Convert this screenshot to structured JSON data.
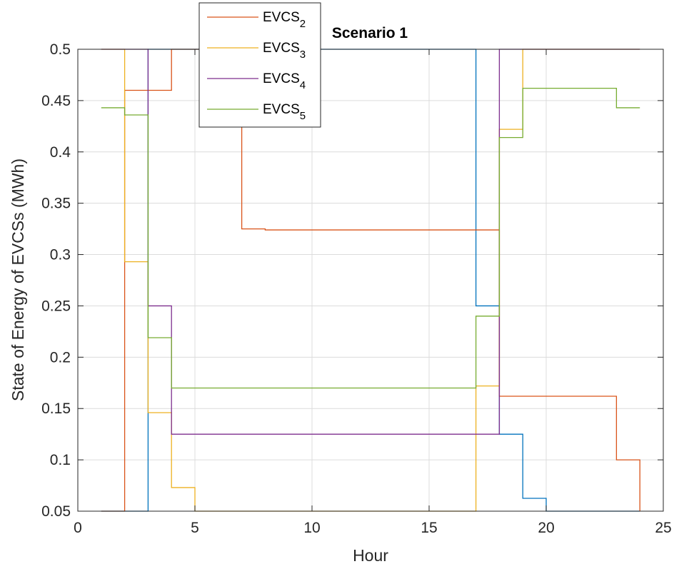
{
  "chart_data": {
    "type": "line",
    "step": true,
    "title": "Scenario 1",
    "xlabel": "Hour",
    "ylabel": "State of Energy of EVCSs (MWh)",
    "xlim": [
      0,
      25
    ],
    "ylim": [
      0.05,
      0.5
    ],
    "xticks": [
      0,
      5,
      10,
      15,
      20,
      25
    ],
    "yticks": [
      0.05,
      0.1,
      0.15,
      0.2,
      0.25,
      0.3,
      0.35,
      0.4,
      0.45,
      0.5
    ],
    "xtick_labels": [
      "0",
      "5",
      "10",
      "15",
      "20",
      "25"
    ],
    "ytick_labels": [
      "0.05",
      "0.1",
      "0.15",
      "0.2",
      "0.25",
      "0.3",
      "0.35",
      "0.4",
      "0.45",
      "0.5"
    ],
    "grid": true,
    "legend_position": "top-center",
    "legend": [
      {
        "base": "EVCS",
        "sub": "2",
        "color": "#D95319"
      },
      {
        "base": "EVCS",
        "sub": "3",
        "color": "#EDB120"
      },
      {
        "base": "EVCS",
        "sub": "4",
        "color": "#7E2F8E"
      },
      {
        "base": "EVCS",
        "sub": "5",
        "color": "#77AC30"
      }
    ],
    "x": [
      1,
      2,
      3,
      4,
      5,
      6,
      7,
      8,
      9,
      10,
      11,
      12,
      13,
      14,
      15,
      16,
      17,
      18,
      19,
      20,
      21,
      22,
      23,
      24
    ],
    "series": [
      {
        "color": "#0072BD",
        "in_legend": false,
        "values": [
          0.05,
          0.05,
          0.5,
          0.5,
          0.5,
          0.5,
          0.5,
          0.5,
          0.5,
          0.5,
          0.5,
          0.5,
          0.5,
          0.5,
          0.5,
          0.5,
          0.25,
          0.125,
          0.0625,
          0.05,
          0.05,
          0.05,
          0.05,
          0.05
        ]
      },
      {
        "name": "EVCS2",
        "color": "#D95319",
        "in_legend": true,
        "values": [
          0.05,
          0.46,
          0.46,
          0.5,
          0.5,
          0.5,
          0.325,
          0.324,
          0.324,
          0.324,
          0.324,
          0.324,
          0.324,
          0.324,
          0.324,
          0.324,
          0.324,
          0.162,
          0.162,
          0.162,
          0.162,
          0.162,
          0.1,
          0.05
        ]
      },
      {
        "name": "EVCS3",
        "color": "#EDB120",
        "in_legend": true,
        "values": [
          0.5,
          0.293,
          0.146,
          0.073,
          0.05,
          0.05,
          0.05,
          0.05,
          0.05,
          0.05,
          0.05,
          0.05,
          0.05,
          0.05,
          0.05,
          0.05,
          0.172,
          0.422,
          0.5,
          0.5,
          0.5,
          0.5,
          0.5,
          0.5
        ]
      },
      {
        "name": "EVCS4",
        "color": "#7E2F8E",
        "in_legend": true,
        "values": [
          0.5,
          0.5,
          0.25,
          0.125,
          0.125,
          0.125,
          0.125,
          0.125,
          0.125,
          0.125,
          0.125,
          0.125,
          0.125,
          0.125,
          0.125,
          0.125,
          0.125,
          0.5,
          0.5,
          0.5,
          0.5,
          0.5,
          0.5,
          0.5
        ]
      },
      {
        "name": "EVCS5",
        "color": "#77AC30",
        "in_legend": true,
        "values": [
          0.443,
          0.436,
          0.219,
          0.17,
          0.17,
          0.17,
          0.17,
          0.17,
          0.17,
          0.17,
          0.17,
          0.17,
          0.17,
          0.17,
          0.17,
          0.17,
          0.24,
          0.414,
          0.462,
          0.462,
          0.462,
          0.462,
          0.443,
          0.443
        ]
      }
    ]
  }
}
